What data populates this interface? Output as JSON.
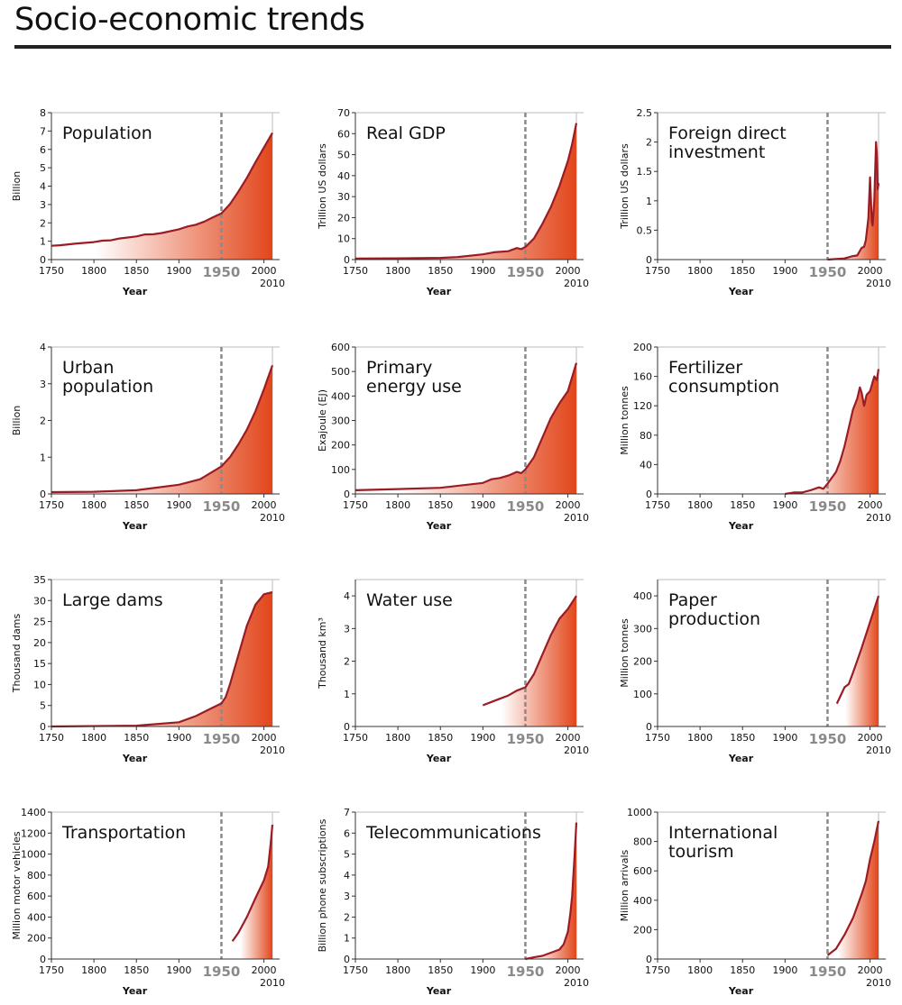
{
  "title": "Socio-economic trends",
  "colors": {
    "line": "#9b1c24",
    "fill_end": "#e2461b",
    "fill_start": "#ffffff",
    "marker_1950": "#8a8a8a",
    "rule": "#222222"
  },
  "x_axis": {
    "label": "Year",
    "ticks": [
      "1750",
      "1800",
      "1850",
      "1900",
      "2000"
    ],
    "highlight": "1950",
    "end": "2010",
    "range": [
      1750,
      2010
    ]
  },
  "chart_data": [
    {
      "type": "area",
      "title": [
        "Population"
      ],
      "ylabel": "Billion",
      "ylim": [
        0,
        8
      ],
      "yticks": [
        "0",
        "1",
        "2",
        "3",
        "4",
        "5",
        "6",
        "7",
        "8"
      ],
      "x": [
        1750,
        1760,
        1780,
        1800,
        1810,
        1820,
        1830,
        1850,
        1860,
        1870,
        1880,
        1900,
        1910,
        1920,
        1930,
        1940,
        1950,
        1960,
        1970,
        1980,
        1990,
        2000,
        2010
      ],
      "y": [
        0.75,
        0.78,
        0.88,
        0.95,
        1.03,
        1.05,
        1.15,
        1.26,
        1.37,
        1.38,
        1.45,
        1.65,
        1.8,
        1.9,
        2.07,
        2.3,
        2.52,
        3.02,
        3.7,
        4.45,
        5.3,
        6.1,
        6.9
      ]
    },
    {
      "type": "area",
      "title": [
        "Real GDP"
      ],
      "ylabel": "Trillion US dollars",
      "ylim": [
        0,
        70
      ],
      "yticks": [
        "0",
        "10",
        "20",
        "30",
        "40",
        "50",
        "60",
        "70"
      ],
      "x": [
        1750,
        1800,
        1850,
        1870,
        1900,
        1913,
        1930,
        1940,
        1945,
        1950,
        1960,
        1970,
        1980,
        1990,
        2000,
        2005,
        2010
      ],
      "y": [
        0.5,
        0.6,
        0.8,
        1.2,
        2.5,
        3.5,
        4,
        5.5,
        5,
        6,
        10,
        17,
        25,
        35,
        47,
        55,
        65
      ]
    },
    {
      "type": "area",
      "title": [
        "Foreign direct",
        "investment"
      ],
      "ylabel": "Trillion US dollars",
      "ylim": [
        0,
        2.5
      ],
      "yticks": [
        "0",
        "0.5",
        "1",
        "1.5",
        "2",
        "2.5"
      ],
      "x": [
        1950,
        1970,
        1980,
        1985,
        1990,
        1993,
        1995,
        1998,
        2000,
        2002,
        2003,
        2005,
        2007,
        2008,
        2009,
        2010
      ],
      "y": [
        0,
        0.02,
        0.06,
        0.07,
        0.2,
        0.22,
        0.33,
        0.7,
        1.4,
        0.65,
        0.58,
        1.0,
        2.0,
        1.8,
        1.2,
        1.3
      ]
    },
    {
      "type": "area",
      "title": [
        "Urban",
        "population"
      ],
      "ylabel": "Billion",
      "ylim": [
        0,
        4
      ],
      "yticks": [
        "0",
        "1",
        "2",
        "3",
        "4"
      ],
      "x": [
        1750,
        1800,
        1850,
        1900,
        1925,
        1950,
        1960,
        1970,
        1980,
        1990,
        2000,
        2010
      ],
      "y": [
        0.05,
        0.06,
        0.1,
        0.25,
        0.4,
        0.75,
        1.0,
        1.35,
        1.75,
        2.25,
        2.85,
        3.5
      ]
    },
    {
      "type": "area",
      "title": [
        "Primary",
        "energy use"
      ],
      "ylabel": "Exajoule (EJ)",
      "ylim": [
        0,
        600
      ],
      "yticks": [
        "0",
        "100",
        "200",
        "300",
        "400",
        "500",
        "600"
      ],
      "x": [
        1750,
        1800,
        1850,
        1900,
        1910,
        1920,
        1930,
        1940,
        1945,
        1950,
        1960,
        1970,
        1980,
        1990,
        2000,
        2010
      ],
      "y": [
        15,
        20,
        25,
        45,
        60,
        65,
        75,
        90,
        85,
        100,
        150,
        230,
        310,
        370,
        420,
        535
      ]
    },
    {
      "type": "area",
      "title": [
        "Fertilizer",
        "consumption"
      ],
      "ylabel": "Million tonnes",
      "ylim": [
        0,
        200
      ],
      "yticks": [
        "0",
        "40",
        "80",
        "120",
        "160",
        "200"
      ],
      "x": [
        1900,
        1910,
        1920,
        1930,
        1940,
        1945,
        1950,
        1960,
        1965,
        1970,
        1975,
        1980,
        1985,
        1988,
        1990,
        1993,
        1996,
        2000,
        2005,
        2008,
        2010
      ],
      "y": [
        0,
        2,
        2,
        5,
        9,
        7,
        14,
        30,
        45,
        65,
        90,
        115,
        130,
        145,
        138,
        120,
        135,
        140,
        160,
        155,
        170
      ]
    },
    {
      "type": "area",
      "title": [
        "Large dams"
      ],
      "ylabel": "Thousand dams",
      "ylim": [
        0,
        35
      ],
      "yticks": [
        "0",
        "5",
        "10",
        "15",
        "20",
        "25",
        "30",
        "35"
      ],
      "x": [
        1750,
        1850,
        1900,
        1920,
        1940,
        1950,
        1955,
        1960,
        1970,
        1980,
        1990,
        2000,
        2010
      ],
      "y": [
        0,
        0.2,
        1.0,
        2.5,
        4.5,
        5.5,
        7,
        10,
        17,
        24,
        29,
        31.5,
        32
      ]
    },
    {
      "type": "area",
      "title": [
        "Water use"
      ],
      "ylabel": "Thousand km³",
      "ylim": [
        0,
        4.5
      ],
      "yticks": [
        "0",
        "1",
        "2",
        "3",
        "4"
      ],
      "x": [
        1900,
        1910,
        1920,
        1930,
        1940,
        1950,
        1960,
        1970,
        1980,
        1990,
        2000,
        2010
      ],
      "y": [
        0.65,
        0.75,
        0.85,
        0.95,
        1.1,
        1.2,
        1.6,
        2.2,
        2.8,
        3.3,
        3.6,
        4.0
      ]
    },
    {
      "type": "area",
      "title": [
        "Paper",
        "production"
      ],
      "ylabel": "Million tonnes",
      "ylim": [
        0,
        450
      ],
      "yticks": [
        "0",
        "100",
        "200",
        "300",
        "400"
      ],
      "x": [
        1961,
        1970,
        1975,
        1980,
        1990,
        2000,
        2010
      ],
      "y": [
        70,
        120,
        130,
        165,
        240,
        320,
        400
      ]
    },
    {
      "type": "area",
      "title": [
        "Transportation"
      ],
      "ylabel": "Million motor vehicles",
      "ylim": [
        0,
        1400
      ],
      "yticks": [
        "0",
        "200",
        "400",
        "600",
        "800",
        "1000",
        "1200",
        "1400"
      ],
      "x": [
        1963,
        1970,
        1980,
        1990,
        2000,
        2005,
        2008,
        2010
      ],
      "y": [
        170,
        250,
        400,
        580,
        750,
        880,
        1100,
        1280
      ]
    },
    {
      "type": "area",
      "title": [
        "Telecommunications"
      ],
      "ylabel": "Billion phone subscriptions",
      "ylim": [
        0,
        7
      ],
      "yticks": [
        "0",
        "1",
        "2",
        "3",
        "4",
        "5",
        "6",
        "7"
      ],
      "x": [
        1950,
        1960,
        1970,
        1980,
        1990,
        1995,
        2000,
        2003,
        2005,
        2008,
        2010
      ],
      "y": [
        0,
        0.08,
        0.15,
        0.3,
        0.45,
        0.7,
        1.3,
        2.2,
        3.0,
        5.0,
        6.5
      ]
    },
    {
      "type": "area",
      "title": [
        "International",
        "tourism"
      ],
      "ylabel": "Million arrivals",
      "ylim": [
        0,
        1000
      ],
      "yticks": [
        "0",
        "200",
        "400",
        "600",
        "800",
        "1000"
      ],
      "x": [
        1950,
        1960,
        1970,
        1980,
        1990,
        1995,
        2000,
        2005,
        2010
      ],
      "y": [
        25,
        70,
        165,
        280,
        440,
        530,
        680,
        800,
        940
      ]
    }
  ]
}
